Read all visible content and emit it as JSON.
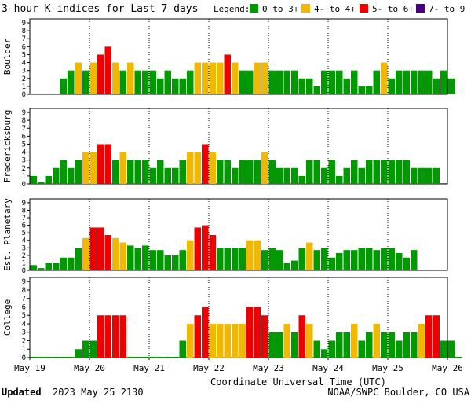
{
  "title": "3-hour K-indices for Last 7 days",
  "legend": {
    "label": "Legend:",
    "entries": [
      {
        "text": "0 to 3+",
        "color": "#009900"
      },
      {
        "text": "4- to 4+",
        "color": "#f0b800"
      },
      {
        "text": "5- to 6+",
        "color": "#ee0000"
      },
      {
        "text": "7- to 9",
        "color": "#4b0082"
      }
    ]
  },
  "x_axis": {
    "label": "Coordinate Universal Time (UTC)",
    "ticks": [
      "May 19",
      "May 20",
      "May 21",
      "May 22",
      "May 23",
      "May 24",
      "May 25",
      "May 26"
    ]
  },
  "footer": {
    "updated_label": "Updated",
    "updated_value": "2023 May 25 2130",
    "credit": "NOAA/SWPC Boulder, CO USA"
  },
  "y_ticks": [
    "0",
    "1",
    "2",
    "3",
    "4",
    "5",
    "6",
    "7",
    "8",
    "9"
  ],
  "chart_data": [
    {
      "type": "bar",
      "ylabel": "Boulder",
      "ylim": [
        0,
        9
      ],
      "values": [
        0.1,
        0.1,
        0.1,
        0.1,
        2,
        3,
        4,
        3,
        4,
        5,
        6,
        4,
        3,
        4,
        3,
        3,
        3,
        2,
        3,
        2,
        2,
        3,
        4,
        4,
        4,
        4,
        5,
        4,
        3,
        3,
        4,
        4,
        3,
        3,
        3,
        3,
        2,
        2,
        1,
        3,
        3,
        3,
        2,
        3,
        1,
        1,
        3,
        4,
        2,
        3,
        3,
        3,
        3,
        3,
        2,
        3,
        2,
        0.1
      ]
    },
    {
      "type": "bar",
      "ylabel": "Fredericksburg",
      "ylim": [
        0,
        9
      ],
      "values": [
        1,
        0.2,
        1,
        2,
        3,
        2,
        3,
        4,
        4,
        5,
        5,
        3,
        4,
        3,
        3,
        3,
        2,
        3,
        2,
        2,
        3,
        4,
        4,
        5,
        4,
        3,
        3,
        2,
        3,
        3,
        3,
        4,
        3,
        2,
        2,
        2,
        1,
        3,
        3,
        2,
        3,
        1,
        2,
        3,
        2,
        3,
        3,
        3,
        3,
        3,
        3,
        2,
        2,
        2,
        2,
        0.1
      ]
    },
    {
      "type": "bar",
      "ylabel": "Est. Planetary",
      "ylim": [
        0,
        9
      ],
      "values": [
        0.7,
        0.3,
        1,
        1,
        1.7,
        1.7,
        3,
        4.3,
        5.7,
        5.7,
        4.7,
        4.3,
        3.7,
        3.3,
        3,
        3.3,
        2.7,
        2.7,
        2,
        2,
        2.7,
        4,
        5.7,
        6,
        4.7,
        3,
        3,
        3,
        3,
        4,
        4,
        2.7,
        3,
        2.7,
        1,
        1.3,
        3,
        3.7,
        2.7,
        3,
        1.7,
        2.3,
        2.7,
        2.7,
        3,
        3,
        2.7,
        3,
        3,
        2.3,
        1.7,
        2.7
      ]
    },
    {
      "type": "bar",
      "ylabel": "College",
      "ylim": [
        0,
        9
      ],
      "values": [
        0.1,
        0.1,
        0.1,
        0.1,
        0.1,
        0.1,
        1,
        2,
        2,
        5,
        5,
        5,
        5,
        0.1,
        0.1,
        0.1,
        0.1,
        0.1,
        0.1,
        0.1,
        2,
        4,
        5,
        6,
        4,
        4,
        4,
        4,
        4,
        6,
        6,
        5,
        3,
        3,
        4,
        3,
        5,
        4,
        2,
        1,
        2,
        3,
        3,
        4,
        2,
        3,
        4,
        3,
        3,
        2,
        3,
        3,
        4,
        5,
        5,
        2,
        2,
        0.1
      ]
    }
  ]
}
